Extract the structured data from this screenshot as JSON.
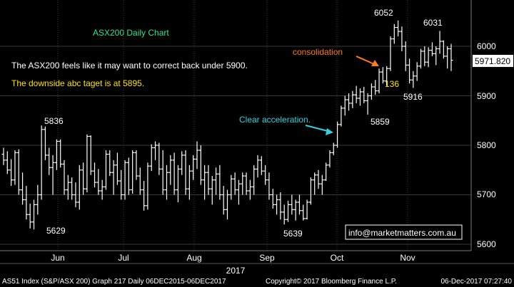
{
  "chart_data": {
    "type": "ohlc",
    "title": "ASX200 Daily Chart",
    "xlabel": "2017",
    "ylabel": "",
    "ylim": [
      5590,
      6075
    ],
    "y_ticks": [
      "5600",
      "5700",
      "5800",
      "5900",
      "6000"
    ],
    "x_ticks": [
      "Jun",
      "Jul",
      "Aug",
      "Sep",
      "Oct",
      "Nov"
    ],
    "last_price": "5971.820",
    "grid": true,
    "colors": {
      "bars": "#ffffff",
      "grid": "#3a3a3a",
      "last_price_box": "#ffffff"
    },
    "ohlc": [
      [
        5782,
        5795,
        5760,
        5770
      ],
      [
        5770,
        5788,
        5742,
        5750
      ],
      [
        5750,
        5772,
        5718,
        5730
      ],
      [
        5730,
        5790,
        5720,
        5785
      ],
      [
        5785,
        5792,
        5700,
        5710
      ],
      [
        5710,
        5745,
        5680,
        5690
      ],
      [
        5690,
        5718,
        5650,
        5660
      ],
      [
        5660,
        5682,
        5632,
        5645
      ],
      [
        5645,
        5690,
        5630,
        5680
      ],
      [
        5680,
        5720,
        5660,
        5700
      ],
      [
        5700,
        5840,
        5690,
        5832
      ],
      [
        5832,
        5838,
        5770,
        5780
      ],
      [
        5780,
        5795,
        5740,
        5755
      ],
      [
        5755,
        5780,
        5700,
        5765
      ],
      [
        5765,
        5812,
        5750,
        5808
      ],
      [
        5808,
        5812,
        5755,
        5762
      ],
      [
        5762,
        5770,
        5700,
        5710
      ],
      [
        5710,
        5740,
        5690,
        5725
      ],
      [
        5725,
        5735,
        5690,
        5700
      ],
      [
        5700,
        5725,
        5675,
        5685
      ],
      [
        5685,
        5760,
        5670,
        5750
      ],
      [
        5750,
        5765,
        5700,
        5712
      ],
      [
        5712,
        5822,
        5705,
        5818
      ],
      [
        5818,
        5820,
        5740,
        5748
      ],
      [
        5748,
        5765,
        5715,
        5725
      ],
      [
        5725,
        5752,
        5700,
        5708
      ],
      [
        5708,
        5730,
        5690,
        5716
      ],
      [
        5716,
        5790,
        5710,
        5782
      ],
      [
        5782,
        5790,
        5738,
        5745
      ],
      [
        5745,
        5770,
        5700,
        5760
      ],
      [
        5760,
        5785,
        5720,
        5728
      ],
      [
        5728,
        5750,
        5690,
        5700
      ],
      [
        5700,
        5770,
        5690,
        5765
      ],
      [
        5765,
        5775,
        5700,
        5710
      ],
      [
        5710,
        5790,
        5702,
        5785
      ],
      [
        5785,
        5790,
        5730,
        5738
      ],
      [
        5738,
        5755,
        5700,
        5710
      ],
      [
        5710,
        5728,
        5668,
        5678
      ],
      [
        5678,
        5765,
        5670,
        5758
      ],
      [
        5758,
        5802,
        5748,
        5795
      ],
      [
        5795,
        5808,
        5770,
        5800
      ],
      [
        5800,
        5805,
        5740,
        5752
      ],
      [
        5752,
        5790,
        5700,
        5710
      ],
      [
        5710,
        5760,
        5690,
        5745
      ],
      [
        5745,
        5780,
        5720,
        5770
      ],
      [
        5770,
        5785,
        5700,
        5710
      ],
      [
        5710,
        5760,
        5685,
        5752
      ],
      [
        5752,
        5788,
        5740,
        5780
      ],
      [
        5780,
        5790,
        5700,
        5712
      ],
      [
        5712,
        5760,
        5690,
        5748
      ],
      [
        5748,
        5780,
        5730,
        5772
      ],
      [
        5772,
        5808,
        5752,
        5790
      ],
      [
        5790,
        5800,
        5720,
        5730
      ],
      [
        5730,
        5760,
        5690,
        5745
      ],
      [
        5745,
        5760,
        5700,
        5712
      ],
      [
        5712,
        5738,
        5680,
        5730
      ],
      [
        5730,
        5755,
        5700,
        5742
      ],
      [
        5742,
        5760,
        5690,
        5700
      ],
      [
        5700,
        5718,
        5660,
        5670
      ],
      [
        5670,
        5710,
        5650,
        5700
      ],
      [
        5700,
        5740,
        5690,
        5732
      ],
      [
        5732,
        5745,
        5700,
        5710
      ],
      [
        5710,
        5730,
        5680,
        5722
      ],
      [
        5722,
        5745,
        5700,
        5738
      ],
      [
        5738,
        5745,
        5700,
        5708
      ],
      [
        5708,
        5730,
        5690,
        5716
      ],
      [
        5716,
        5760,
        5700,
        5752
      ],
      [
        5752,
        5780,
        5735,
        5770
      ],
      [
        5770,
        5778,
        5740,
        5748
      ],
      [
        5748,
        5760,
        5720,
        5730
      ],
      [
        5730,
        5745,
        5690,
        5700
      ],
      [
        5700,
        5712,
        5672,
        5680
      ],
      [
        5680,
        5700,
        5660,
        5690
      ],
      [
        5690,
        5705,
        5650,
        5665
      ],
      [
        5665,
        5680,
        5640,
        5650
      ],
      [
        5650,
        5688,
        5645,
        5680
      ],
      [
        5680,
        5700,
        5660,
        5670
      ],
      [
        5670,
        5690,
        5648,
        5685
      ],
      [
        5685,
        5700,
        5660,
        5668
      ],
      [
        5668,
        5680,
        5648,
        5652
      ],
      [
        5652,
        5690,
        5650,
        5685
      ],
      [
        5685,
        5735,
        5680,
        5730
      ],
      [
        5730,
        5745,
        5700,
        5740
      ],
      [
        5740,
        5750,
        5712,
        5722
      ],
      [
        5722,
        5740,
        5700,
        5730
      ],
      [
        5730,
        5765,
        5728,
        5760
      ],
      [
        5760,
        5790,
        5755,
        5785
      ],
      [
        5785,
        5805,
        5780,
        5800
      ],
      [
        5800,
        5848,
        5795,
        5842
      ],
      [
        5842,
        5880,
        5838,
        5875
      ],
      [
        5875,
        5900,
        5860,
        5892
      ],
      [
        5892,
        5905,
        5870,
        5885
      ],
      [
        5885,
        5910,
        5875,
        5902
      ],
      [
        5902,
        5920,
        5885,
        5895
      ],
      [
        5895,
        5915,
        5880,
        5908
      ],
      [
        5908,
        5918,
        5885,
        5890
      ],
      [
        5890,
        5905,
        5862,
        5900
      ],
      [
        5900,
        5925,
        5892,
        5918
      ],
      [
        5918,
        5932,
        5902,
        5910
      ],
      [
        5910,
        5955,
        5905,
        5948
      ],
      [
        5948,
        5958,
        5925,
        5930
      ],
      [
        5930,
        5960,
        5920,
        5955
      ],
      [
        5955,
        6020,
        5950,
        6015
      ],
      [
        6015,
        6045,
        6005,
        6038
      ],
      [
        6038,
        6052,
        6020,
        6030
      ],
      [
        6030,
        6040,
        5990,
        6000
      ],
      [
        6000,
        6010,
        5950,
        5962
      ],
      [
        5962,
        5975,
        5925,
        5932
      ],
      [
        5932,
        5950,
        5916,
        5940
      ],
      [
        5940,
        5968,
        5930,
        5960
      ],
      [
        5960,
        5995,
        5955,
        5990
      ],
      [
        5990,
        6000,
        5960,
        5968
      ],
      [
        5968,
        5998,
        5958,
        5992
      ],
      [
        5992,
        6008,
        5980,
        5985
      ],
      [
        5985,
        6000,
        5962,
        5995
      ],
      [
        5995,
        6031,
        5985,
        6010
      ],
      [
        6010,
        6012,
        5975,
        5980
      ],
      [
        5980,
        6000,
        5955,
        5995
      ],
      [
        5995,
        6005,
        5950,
        5971.82
      ]
    ]
  },
  "annotations": {
    "title": "ASX200 Daily Chart",
    "comment1": "The ASX200 feels like it may want to correct back under 5900.",
    "comment2": "The downside abc taget is at 5895.",
    "consolidation": "consolidation",
    "acceleration": "Clear acceleration.",
    "label_136": "136",
    "label_6052": "6052",
    "label_6031": "6031",
    "label_5916": "5916",
    "label_5859": "5859",
    "label_5836": "5836",
    "label_5629": "5629",
    "label_5639": "5639",
    "email": "info@marketmatters.com.au"
  },
  "footer": {
    "left": "AS51 Index (S&P/ASX 200) Graph 217  Daily 06DEC2015-06DEC2017",
    "center": "Copyright© 2017 Bloomberg Finance L.P.",
    "right": "06-Dec-2017 07:27:40"
  }
}
